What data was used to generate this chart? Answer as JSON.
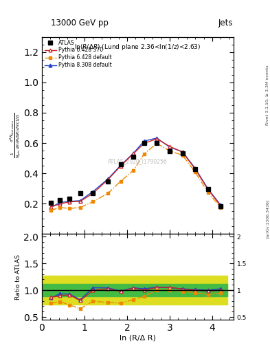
{
  "title_left": "13000 GeV pp",
  "title_right": "Jets",
  "panel_title": "ln(R/Δ R) (Lund plane 2.36<ln(1/z)<2.63)",
  "ylabel_main": "$\\frac{1}{N_{\\mathrm{jets}}}\\frac{d^2 N_{\\mathrm{emissions}}}{d\\ln(R/\\Delta R)\\,d\\ln(1/z)}$",
  "ylabel_ratio": "Ratio to ATLAS",
  "xlabel": "ln (R/Δ R)",
  "watermark": "ATLAS_2020_I1790256",
  "right_label": "Rivet 3.1.10, ≥ 3.3M events",
  "arxiv_label": "[arXiv:1306.3436]",
  "x_atlas": [
    0.21,
    0.42,
    0.65,
    0.9,
    1.2,
    1.55,
    1.85,
    2.15,
    2.4,
    2.7,
    3.0,
    3.3,
    3.6,
    3.9,
    4.2
  ],
  "y_atlas": [
    0.205,
    0.222,
    0.232,
    0.268,
    0.268,
    0.348,
    0.46,
    0.51,
    0.598,
    0.598,
    0.548,
    0.53,
    0.428,
    0.298,
    0.185
  ],
  "x_py6_370": [
    0.21,
    0.42,
    0.65,
    0.9,
    1.2,
    1.55,
    1.85,
    2.15,
    2.4,
    2.7,
    3.0,
    3.3,
    3.6,
    3.9,
    4.2
  ],
  "y_py6_370": [
    0.178,
    0.198,
    0.212,
    0.215,
    0.268,
    0.358,
    0.448,
    0.53,
    0.598,
    0.628,
    0.578,
    0.54,
    0.428,
    0.293,
    0.185
  ],
  "x_py6_def": [
    0.21,
    0.42,
    0.65,
    0.9,
    1.2,
    1.55,
    1.85,
    2.15,
    2.4,
    2.7,
    3.0,
    3.3,
    3.6,
    3.9,
    4.2
  ],
  "y_py6_def": [
    0.155,
    0.175,
    0.168,
    0.175,
    0.213,
    0.268,
    0.348,
    0.42,
    0.528,
    0.598,
    0.548,
    0.52,
    0.408,
    0.273,
    0.175
  ],
  "x_py8_def": [
    0.21,
    0.42,
    0.65,
    0.9,
    1.2,
    1.55,
    1.85,
    2.15,
    2.4,
    2.7,
    3.0,
    3.3,
    3.6,
    3.9,
    4.2
  ],
  "y_py8_def": [
    0.175,
    0.207,
    0.215,
    0.22,
    0.28,
    0.363,
    0.453,
    0.533,
    0.613,
    0.633,
    0.573,
    0.543,
    0.433,
    0.298,
    0.19
  ],
  "ratio_py6_370": [
    0.868,
    0.892,
    0.914,
    0.802,
    1.0,
    1.029,
    0.974,
    1.039,
    1.0,
    1.05,
    1.055,
    1.019,
    1.0,
    0.983,
    1.0
  ],
  "ratio_py6_def": [
    0.756,
    0.788,
    0.724,
    0.653,
    0.795,
    0.77,
    0.757,
    0.824,
    0.883,
    1.0,
    1.0,
    0.981,
    0.953,
    0.917,
    0.946
  ],
  "ratio_py8_def": [
    0.854,
    0.932,
    0.927,
    0.821,
    1.045,
    1.043,
    0.985,
    1.045,
    1.025,
    1.058,
    1.045,
    1.025,
    1.012,
    1.0,
    1.027
  ],
  "band_x_edges": [
    0.0,
    0.31,
    0.535,
    0.775,
    1.05,
    1.375,
    1.7,
    2.0,
    2.275,
    2.55,
    2.85,
    3.15,
    3.45,
    3.75,
    4.05,
    4.35
  ],
  "band_green_lo": 0.88,
  "band_green_hi": 1.12,
  "band_yellow_lo": 0.73,
  "band_yellow_hi": 1.27,
  "color_py6_370": "#cc2222",
  "color_py6_def": "#ee8800",
  "color_py8_def": "#2244cc",
  "color_green_band": "#44bb44",
  "color_yellow_band": "#dddd22",
  "xlim": [
    0.0,
    4.5
  ],
  "ylim_main": [
    0.0,
    1.3
  ],
  "ylim_ratio": [
    0.45,
    2.05
  ],
  "yticks_main": [
    0.2,
    0.4,
    0.6,
    0.8,
    1.0,
    1.2
  ],
  "yticks_ratio": [
    0.5,
    1.0,
    1.5,
    2.0
  ],
  "xticks": [
    0,
    1,
    2,
    3,
    4
  ]
}
